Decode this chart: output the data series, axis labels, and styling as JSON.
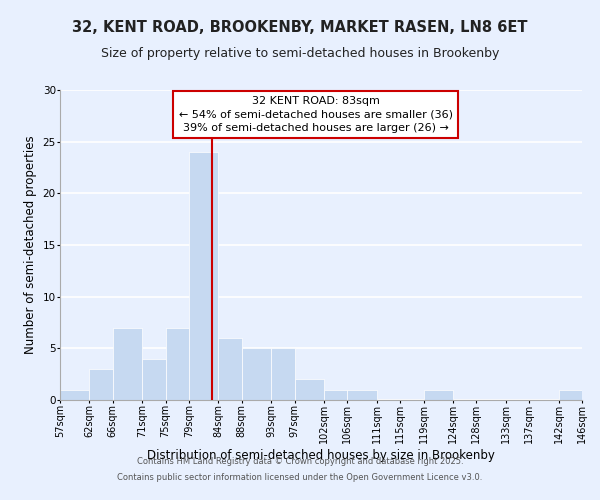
{
  "title": "32, KENT ROAD, BROOKENBY, MARKET RASEN, LN8 6ET",
  "subtitle": "Size of property relative to semi-detached houses in Brookenby",
  "xlabel": "Distribution of semi-detached houses by size in Brookenby",
  "ylabel": "Number of semi-detached properties",
  "bar_edges": [
    57,
    62,
    66,
    71,
    75,
    79,
    84,
    88,
    93,
    97,
    102,
    106,
    111,
    115,
    119,
    124,
    128,
    133,
    137,
    142,
    146
  ],
  "bar_heights": [
    1,
    3,
    7,
    4,
    7,
    24,
    6,
    5,
    5,
    2,
    1,
    1,
    0,
    0,
    1,
    0,
    0,
    0,
    0,
    1
  ],
  "tick_labels": [
    "57sqm",
    "62sqm",
    "66sqm",
    "71sqm",
    "75sqm",
    "79sqm",
    "84sqm",
    "88sqm",
    "93sqm",
    "97sqm",
    "102sqm",
    "106sqm",
    "111sqm",
    "115sqm",
    "119sqm",
    "124sqm",
    "128sqm",
    "133sqm",
    "137sqm",
    "142sqm",
    "146sqm"
  ],
  "bar_color": "#c6d9f1",
  "bar_edge_color": "#ffffff",
  "property_line_x": 83,
  "property_label": "32 KENT ROAD: 83sqm",
  "annotation_line1": "← 54% of semi-detached houses are smaller (36)",
  "annotation_line2": "39% of semi-detached houses are larger (26) →",
  "annotation_box_color": "#ffffff",
  "annotation_box_edge": "#cc0000",
  "line_color": "#cc0000",
  "ylim": [
    0,
    30
  ],
  "yticks": [
    0,
    5,
    10,
    15,
    20,
    25,
    30
  ],
  "bg_color": "#e8f0fe",
  "footer1": "Contains HM Land Registry data © Crown copyright and database right 2025.",
  "footer2": "Contains public sector information licensed under the Open Government Licence v3.0.",
  "title_fontsize": 10.5,
  "subtitle_fontsize": 9,
  "axis_label_fontsize": 8.5,
  "tick_fontsize": 7,
  "annotation_fontsize": 8,
  "footer_fontsize": 6
}
